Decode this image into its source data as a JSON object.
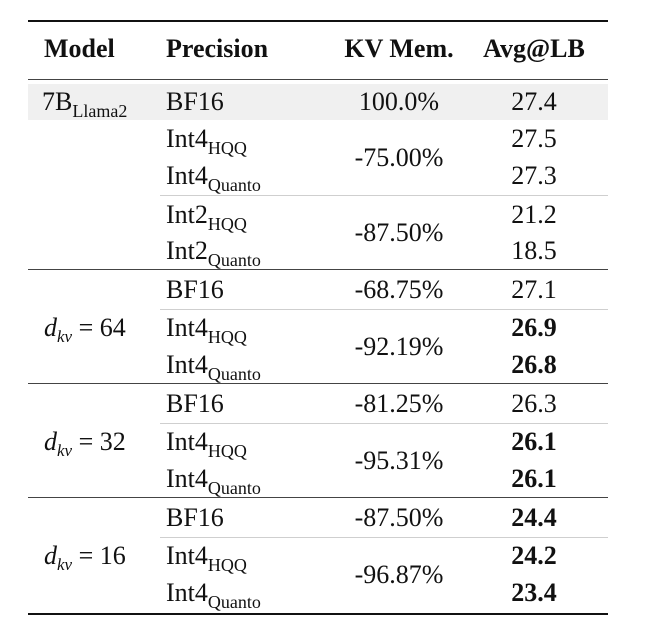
{
  "header": {
    "model": "Model",
    "precision": "Precision",
    "kv_mem": "KV Mem.",
    "avg": "Avg@LB"
  },
  "baseline": {
    "model_main": "7B",
    "model_sub": "Llama2",
    "rows": [
      {
        "prec_main": "BF16",
        "prec_sub": "",
        "kv": "100.0%",
        "avg": "27.4",
        "bold": false
      },
      {
        "prec_main": "Int4",
        "prec_sub": "HQQ",
        "kv": "-75.00%",
        "avg": "27.5",
        "bold": false
      },
      {
        "prec_main": "Int4",
        "prec_sub": "Quanto",
        "kv": "",
        "avg": "27.3",
        "bold": false
      },
      {
        "prec_main": "Int2",
        "prec_sub": "HQQ",
        "kv": "-87.50%",
        "avg": "21.2",
        "bold": false
      },
      {
        "prec_main": "Int2",
        "prec_sub": "Quanto",
        "kv": "",
        "avg": "18.5",
        "bold": false
      }
    ]
  },
  "groups": [
    {
      "dkv": "64",
      "rows": [
        {
          "prec_main": "BF16",
          "prec_sub": "",
          "kv": "-68.75%",
          "avg": "27.1",
          "bold": false
        },
        {
          "prec_main": "Int4",
          "prec_sub": "HQQ",
          "kv": "-92.19%",
          "avg": "26.9",
          "bold": true
        },
        {
          "prec_main": "Int4",
          "prec_sub": "Quanto",
          "kv": "",
          "avg": "26.8",
          "bold": true
        }
      ]
    },
    {
      "dkv": "32",
      "rows": [
        {
          "prec_main": "BF16",
          "prec_sub": "",
          "kv": "-81.25%",
          "avg": "26.3",
          "bold": false
        },
        {
          "prec_main": "Int4",
          "prec_sub": "HQQ",
          "kv": "-95.31%",
          "avg": "26.1",
          "bold": true
        },
        {
          "prec_main": "Int4",
          "prec_sub": "Quanto",
          "kv": "",
          "avg": "26.1",
          "bold": true
        }
      ]
    },
    {
      "dkv": "16",
      "rows": [
        {
          "prec_main": "BF16",
          "prec_sub": "",
          "kv": "-87.50%",
          "avg": "24.4",
          "bold": true
        },
        {
          "prec_main": "Int4",
          "prec_sub": "HQQ",
          "kv": "-96.87%",
          "avg": "24.2",
          "bold": true
        },
        {
          "prec_main": "Int4",
          "prec_sub": "Quanto",
          "kv": "",
          "avg": "23.4",
          "bold": true
        }
      ]
    }
  ]
}
